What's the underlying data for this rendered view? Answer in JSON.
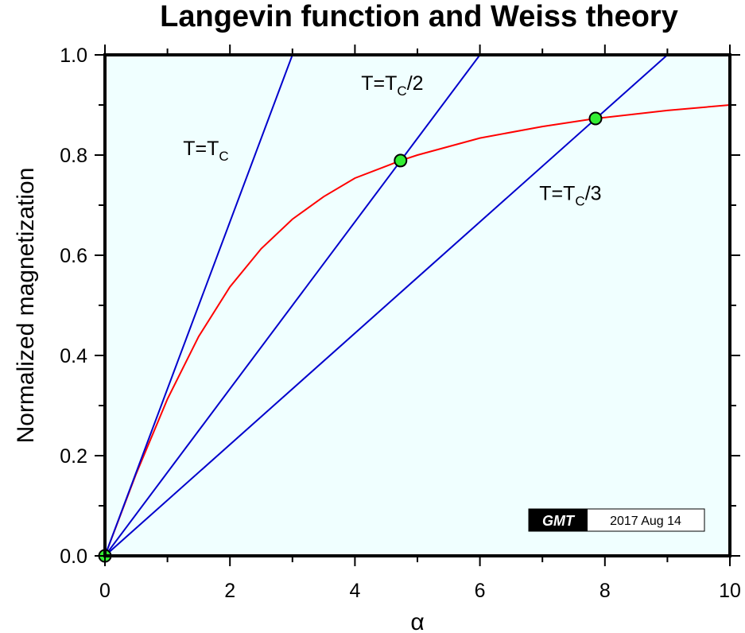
{
  "chart_data": {
    "type": "line",
    "title": "Langevin function and Weiss theory",
    "xlabel": "α",
    "ylabel": "Normalized magnetization",
    "xlim": [
      0,
      10
    ],
    "ylim": [
      0,
      1.0
    ],
    "x_ticks": [
      "0",
      "2",
      "4",
      "6",
      "8",
      "10"
    ],
    "y_ticks": [
      "0.0",
      "0.2",
      "0.4",
      "0.6",
      "0.8",
      "1.0"
    ],
    "grid": false,
    "background_color": "#f0ffff",
    "series": [
      {
        "kind": "curve",
        "color": "#ff0000",
        "points": [
          [
            0,
            0
          ],
          [
            0.5,
            0.164
          ],
          [
            1,
            0.313
          ],
          [
            1.5,
            0.438
          ],
          [
            2,
            0.537
          ],
          [
            2.5,
            0.613
          ],
          [
            3,
            0.672
          ],
          [
            3.5,
            0.717
          ],
          [
            4,
            0.754
          ],
          [
            4.5,
            0.778
          ],
          [
            4.73,
            0.789
          ],
          [
            5,
            0.8
          ],
          [
            6,
            0.834
          ],
          [
            7,
            0.857
          ],
          [
            7.85,
            0.873
          ],
          [
            8,
            0.875
          ],
          [
            9,
            0.889
          ],
          [
            10,
            0.9
          ]
        ]
      },
      {
        "kind": "line",
        "color": "#0000cc",
        "points": [
          [
            0,
            0
          ],
          [
            3,
            1.0
          ]
        ],
        "label": {
          "main": "T=T",
          "sub": "C",
          "rest": ""
        }
      },
      {
        "kind": "line",
        "color": "#0000cc",
        "points": [
          [
            0,
            0
          ],
          [
            6,
            1.0
          ]
        ],
        "label": {
          "main": "T=T",
          "sub": "C",
          "rest": "/2"
        }
      },
      {
        "kind": "line",
        "color": "#0000cc",
        "points": [
          [
            0,
            0
          ],
          [
            9,
            1.0
          ]
        ],
        "label": {
          "main": "T=T",
          "sub": "C",
          "rest": "/3"
        }
      }
    ],
    "points": [
      {
        "x": 0,
        "y": 0
      },
      {
        "x": 4.73,
        "y": 0.789
      },
      {
        "x": 7.85,
        "y": 0.873
      }
    ],
    "point_color": "#33ee33"
  },
  "stamp": {
    "logo": "GMT",
    "date": "2017 Aug 14"
  }
}
